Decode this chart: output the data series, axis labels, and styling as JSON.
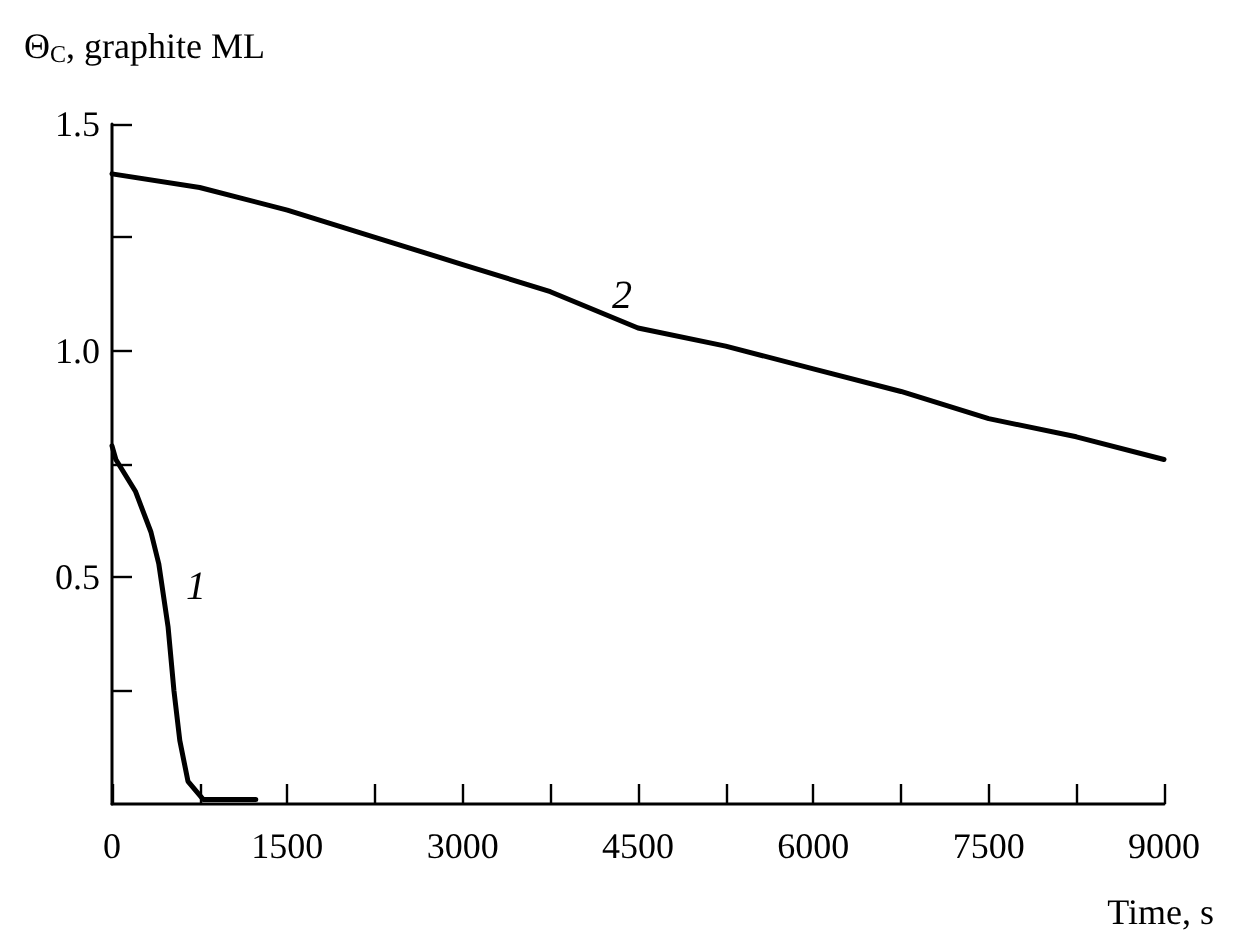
{
  "chart_data": {
    "type": "line",
    "ylabel": "Θ$_{C}$, graphite ML",
    "xlabel": "Time, s",
    "xlim": [
      0,
      9000
    ],
    "ylim": [
      0,
      1.5
    ],
    "xticks": [
      0,
      {
        "value": 750,
        "label": null
      },
      1500,
      {
        "value": 2250,
        "label": null
      },
      3000,
      {
        "value": 3750,
        "label": null
      },
      4500,
      {
        "value": 5250,
        "label": null
      },
      6000,
      {
        "value": 6750,
        "label": null
      },
      7500,
      {
        "value": 8250,
        "label": null
      },
      9000
    ],
    "yticks": [
      {
        "value": 0.25,
        "label": null
      },
      0.5,
      {
        "value": 0.75,
        "label": null
      },
      {
        "value": 1,
        "label": "1.0"
      },
      {
        "value": 1.25,
        "label": null
      },
      1.5
    ],
    "grid": false,
    "legend": false,
    "marker": "none",
    "line_style": "solid",
    "series": [
      {
        "name": "1",
        "color": "#000000",
        "x": [
          0,
          33,
          200,
          333,
          400,
          480,
          530,
          580,
          650,
          780,
          1000,
          1230
        ],
        "values": [
          0.79,
          0.76,
          0.69,
          0.6,
          0.53,
          0.39,
          0.25,
          0.14,
          0.05,
          0.01,
          0.01,
          0.01
        ]
      },
      {
        "name": "2",
        "color": "#000000",
        "x": [
          0,
          750,
          1500,
          2250,
          3000,
          3750,
          4500,
          5250,
          6000,
          6750,
          7500,
          8250,
          9000
        ],
        "values": [
          1.39,
          1.36,
          1.31,
          1.25,
          1.19,
          1.13,
          1.05,
          1.01,
          0.96,
          0.91,
          0.85,
          0.81,
          0.76
        ]
      }
    ]
  }
}
